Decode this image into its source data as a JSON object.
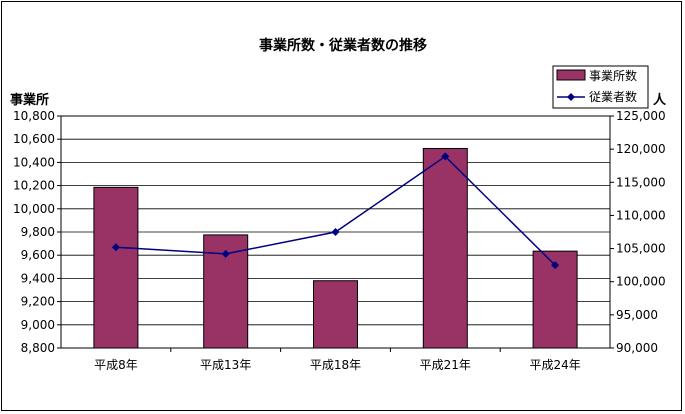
{
  "chart_data": {
    "type": "bar",
    "title": "事業所数・従業者数の推移",
    "categories": [
      "平成8年",
      "平成13年",
      "平成18年",
      "平成21年",
      "平成24年"
    ],
    "series": [
      {
        "name": "事業所数",
        "type": "bar",
        "axis": "left",
        "color": "#993366",
        "values": [
          10185,
          9775,
          9380,
          10520,
          9635
        ]
      },
      {
        "name": "従業者数",
        "type": "line",
        "axis": "right",
        "color": "#000080",
        "values": [
          105200,
          104200,
          107500,
          118900,
          102500
        ]
      }
    ],
    "y_left": {
      "label": "事業所",
      "min": 8800,
      "max": 10800,
      "step": 200,
      "ticks": [
        "8,800",
        "9,000",
        "9,200",
        "9,400",
        "9,600",
        "9,800",
        "10,000",
        "10,200",
        "10,400",
        "10,600",
        "10,800"
      ]
    },
    "y_right": {
      "label": "人",
      "min": 90000,
      "max": 125000,
      "step": 5000,
      "ticks": [
        "90,000",
        "95,000",
        "100,000",
        "105,000",
        "110,000",
        "115,000",
        "120,000",
        "125,000"
      ]
    },
    "grid": true,
    "legend_position": "top-right"
  }
}
